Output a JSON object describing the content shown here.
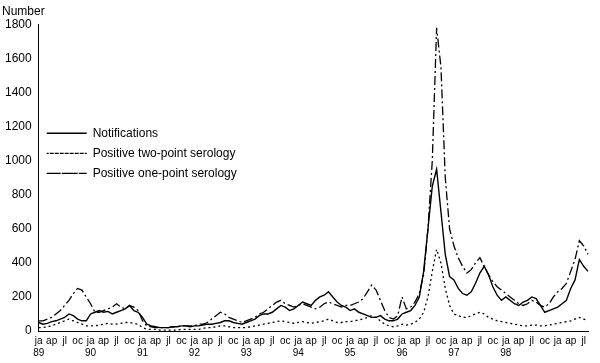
{
  "chart_data": {
    "type": "line",
    "y_label": "Number",
    "categories": [
      [
        "ja",
        "89"
      ],
      null,
      null,
      "ap",
      null,
      null,
      "jl",
      null,
      null,
      "oc",
      null,
      null,
      [
        "ja",
        "90"
      ],
      null,
      null,
      "ap",
      null,
      null,
      "jl",
      null,
      null,
      "oc",
      null,
      null,
      [
        "ja",
        "91"
      ],
      null,
      null,
      "ap",
      null,
      null,
      "jl",
      null,
      null,
      "oc",
      null,
      null,
      [
        "ja",
        "92"
      ],
      null,
      null,
      "ap",
      null,
      null,
      "jl",
      null,
      null,
      "oc",
      null,
      null,
      [
        "ja",
        "93"
      ],
      null,
      null,
      "ap",
      null,
      null,
      "jl",
      null,
      null,
      "oc",
      null,
      null,
      [
        "ja",
        "94"
      ],
      null,
      null,
      "ap",
      null,
      null,
      "jl",
      null,
      null,
      "oc",
      null,
      null,
      [
        "ja",
        "95"
      ],
      null,
      null,
      "ap",
      null,
      null,
      "jl",
      null,
      null,
      "oc",
      null,
      null,
      [
        "ja",
        "96"
      ],
      null,
      null,
      "ap",
      null,
      null,
      "jl",
      null,
      null,
      "oc",
      null,
      null,
      [
        "ja",
        "97"
      ],
      null,
      null,
      "ap",
      null,
      null,
      "jl",
      null,
      null,
      "oc",
      null,
      null,
      [
        "ja",
        "98"
      ],
      null,
      null,
      "ap",
      null,
      null,
      "jl",
      null,
      null,
      "oc",
      null,
      null,
      "ja",
      null,
      null,
      "ap",
      null,
      null,
      "jl",
      null
    ],
    "series": [
      {
        "name": "Notifications",
        "color": "#000000",
        "line_style": "solid",
        "values": [
          50,
          40,
          45,
          55,
          60,
          70,
          80,
          100,
          90,
          70,
          60,
          60,
          100,
          110,
          120,
          110,
          115,
          100,
          110,
          120,
          130,
          150,
          120,
          110,
          80,
          40,
          30,
          25,
          20,
          20,
          20,
          25,
          25,
          30,
          30,
          25,
          30,
          30,
          35,
          40,
          40,
          45,
          50,
          60,
          60,
          50,
          45,
          40,
          50,
          60,
          70,
          90,
          100,
          100,
          110,
          130,
          150,
          140,
          120,
          130,
          150,
          170,
          160,
          150,
          180,
          200,
          210,
          230,
          200,
          170,
          150,
          140,
          120,
          130,
          110,
          100,
          90,
          80,
          80,
          90,
          70,
          60,
          60,
          70,
          100,
          110,
          120,
          150,
          200,
          350,
          600,
          850,
          950,
          700,
          450,
          320,
          300,
          250,
          220,
          210,
          230,
          280,
          340,
          380,
          330,
          260,
          210,
          180,
          200,
          180,
          160,
          150,
          170,
          180,
          200,
          190,
          150,
          110,
          120,
          130,
          140,
          160,
          180,
          250,
          300,
          420,
          380,
          350
        ]
      },
      {
        "name": "Positive two-point serology",
        "color": "#000000",
        "line_style": "dotted",
        "values": [
          20,
          20,
          25,
          30,
          40,
          50,
          60,
          70,
          60,
          50,
          40,
          30,
          30,
          30,
          35,
          40,
          45,
          40,
          40,
          45,
          50,
          50,
          45,
          40,
          20,
          10,
          10,
          10,
          5,
          5,
          5,
          5,
          5,
          10,
          10,
          10,
          10,
          10,
          15,
          20,
          20,
          25,
          30,
          30,
          25,
          20,
          20,
          20,
          20,
          25,
          30,
          35,
          40,
          45,
          50,
          55,
          60,
          55,
          50,
          45,
          50,
          55,
          50,
          45,
          50,
          55,
          60,
          70,
          60,
          50,
          50,
          55,
          55,
          60,
          65,
          70,
          80,
          90,
          80,
          60,
          40,
          30,
          25,
          30,
          40,
          35,
          40,
          50,
          70,
          110,
          200,
          350,
          480,
          400,
          250,
          150,
          100,
          90,
          80,
          80,
          90,
          100,
          110,
          100,
          80,
          70,
          60,
          55,
          50,
          45,
          40,
          35,
          30,
          30,
          35,
          35,
          30,
          30,
          35,
          40,
          45,
          50,
          55,
          60,
          70,
          80,
          70,
          60
        ]
      },
      {
        "name": "Positive one-point serology",
        "color": "#000000",
        "line_style": "dashdot",
        "values": [
          60,
          60,
          70,
          80,
          100,
          120,
          150,
          180,
          220,
          250,
          240,
          200,
          160,
          110,
          110,
          120,
          130,
          140,
          160,
          140,
          130,
          150,
          140,
          120,
          60,
          30,
          25,
          20,
          20,
          20,
          20,
          25,
          25,
          30,
          30,
          30,
          30,
          40,
          40,
          50,
          70,
          90,
          110,
          100,
          80,
          70,
          60,
          50,
          60,
          70,
          80,
          100,
          110,
          130,
          150,
          170,
          180,
          160,
          150,
          140,
          150,
          160,
          150,
          140,
          130,
          140,
          160,
          170,
          160,
          150,
          140,
          150,
          150,
          160,
          170,
          190,
          230,
          270,
          240,
          180,
          120,
          80,
          70,
          90,
          200,
          130,
          140,
          170,
          220,
          330,
          600,
          1000,
          1780,
          1550,
          900,
          600,
          500,
          430,
          380,
          340,
          360,
          400,
          430,
          380,
          330,
          290,
          260,
          240,
          220,
          200,
          180,
          160,
          150,
          160,
          180,
          170,
          150,
          140,
          160,
          200,
          230,
          250,
          280,
          350,
          420,
          530,
          500,
          450
        ]
      }
    ],
    "ylim": [
      0,
      1800
    ],
    "yticks": [
      0,
      200,
      400,
      600,
      800,
      1000,
      1200,
      1400,
      1600,
      1800
    ],
    "grid": false,
    "legend": "left"
  }
}
